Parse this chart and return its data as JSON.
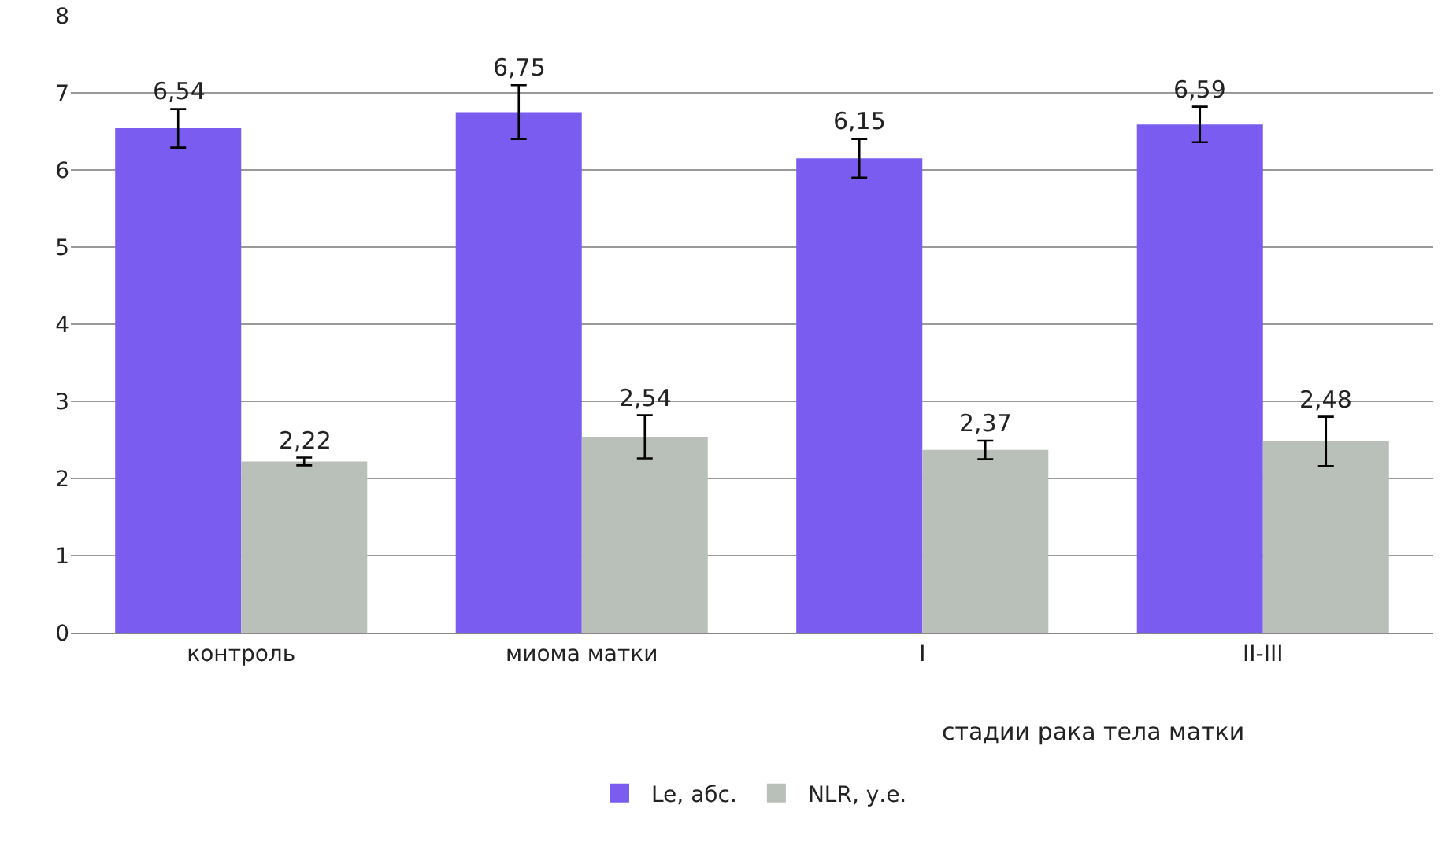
{
  "chart_data": {
    "type": "bar",
    "categories": [
      "контроль",
      "миома матки",
      "I",
      "II-III"
    ],
    "series": [
      {
        "name": "Le, абс.",
        "color": "#7b5cf0",
        "values": [
          6.54,
          6.75,
          6.15,
          6.59
        ],
        "errors": [
          0.25,
          0.35,
          0.25,
          0.23
        ],
        "value_labels": [
          "6,54",
          "6,75",
          "6,15",
          "6,59"
        ]
      },
      {
        "name": "NLR, у.е.",
        "color": "#b9c0b9",
        "values": [
          2.22,
          2.54,
          2.37,
          2.48
        ],
        "errors": [
          0.05,
          0.28,
          0.12,
          0.32
        ],
        "value_labels": [
          "2,22",
          "2,54",
          "2,37",
          "2,48"
        ]
      }
    ],
    "annotations": [
      "стадии рака тела матки"
    ],
    "ylim": [
      0,
      8
    ],
    "yticks": [
      0,
      1,
      2,
      3,
      4,
      5,
      6,
      7,
      8
    ],
    "grid": "y",
    "legend": "bottom"
  }
}
